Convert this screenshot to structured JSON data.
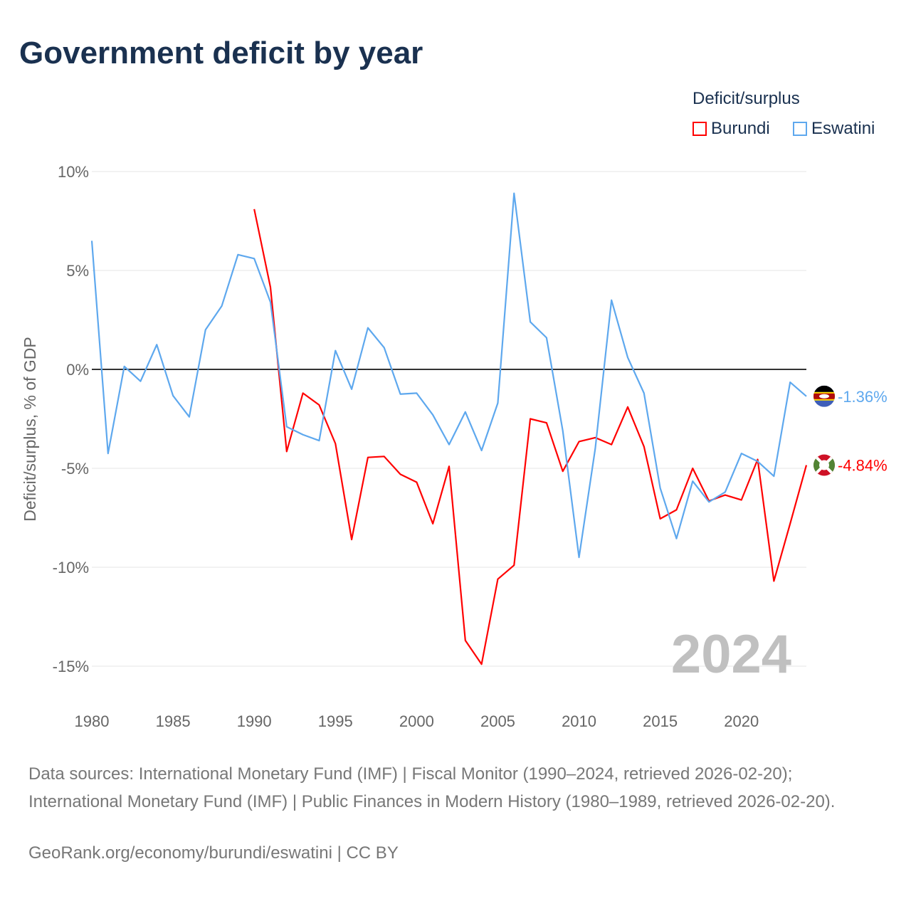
{
  "title": "Government deficit by year",
  "legend": {
    "title": "Deficit/surplus",
    "items": [
      "Burundi",
      "Eswatini"
    ]
  },
  "sources": "Data sources: International Monetary Fund (IMF) | Fiscal Monitor (1990–2024, retrieved 2026-02-20); International Monetary Fund (IMF) | Public Finances in Modern History (1980–1989, retrieved 2026-02-20).",
  "credit": "GeoRank.org/economy/burundi/eswatini | CC BY",
  "chart_data": {
    "type": "line",
    "title": "Government deficit by year",
    "ylabel": "Deficit/surplus, % of GDP",
    "xlabel": "",
    "xlim": [
      1980,
      2024
    ],
    "ylim": [
      -15,
      10
    ],
    "x_ticks": [
      1980,
      1985,
      1990,
      1995,
      2000,
      2005,
      2010,
      2015,
      2020
    ],
    "y_ticks": [
      10,
      5,
      0,
      -5,
      -10,
      -15
    ],
    "y_tick_labels": [
      "10%",
      "5%",
      "0%",
      "-5%",
      "-10%",
      "-15%"
    ],
    "year_watermark": "2024",
    "series": [
      {
        "name": "Burundi",
        "color": "#ff0000",
        "end_label": "-4.84%",
        "x": [
          1990,
          1991,
          1992,
          1993,
          1994,
          1995,
          1996,
          1997,
          1998,
          1999,
          2000,
          2001,
          2002,
          2003,
          2004,
          2005,
          2006,
          2007,
          2008,
          2009,
          2010,
          2011,
          2012,
          2013,
          2014,
          2015,
          2016,
          2017,
          2018,
          2019,
          2020,
          2021,
          2022,
          2023,
          2024
        ],
        "values": [
          8.1,
          4.15,
          -4.15,
          -1.2,
          -1.8,
          -3.75,
          -8.6,
          -4.45,
          -4.4,
          -5.3,
          -5.7,
          -7.8,
          -4.9,
          -13.7,
          -14.9,
          -10.6,
          -9.9,
          -2.5,
          -2.7,
          -5.15,
          -3.65,
          -3.45,
          -3.8,
          -1.9,
          -3.9,
          -7.55,
          -7.1,
          -5.0,
          -6.65,
          -6.35,
          -6.6,
          -4.55,
          -10.7,
          -7.8,
          -4.84
        ]
      },
      {
        "name": "Eswatini",
        "color": "#5ea8ee",
        "end_label": "-1.36%",
        "x": [
          1980,
          1981,
          1982,
          1983,
          1984,
          1985,
          1986,
          1987,
          1988,
          1989,
          1990,
          1991,
          1992,
          1993,
          1994,
          1995,
          1996,
          1997,
          1998,
          1999,
          2000,
          2001,
          2002,
          2003,
          2004,
          2005,
          2006,
          2007,
          2008,
          2009,
          2010,
          2011,
          2012,
          2013,
          2014,
          2015,
          2016,
          2017,
          2018,
          2019,
          2020,
          2021,
          2022,
          2023,
          2024
        ],
        "values": [
          6.5,
          -4.25,
          0.15,
          -0.6,
          1.25,
          -1.33,
          -2.4,
          2.0,
          3.2,
          5.8,
          5.6,
          3.4,
          -2.9,
          -3.3,
          -3.6,
          0.95,
          -1.0,
          2.1,
          1.1,
          -1.25,
          -1.2,
          -2.3,
          -3.8,
          -2.15,
          -4.1,
          -1.7,
          8.9,
          2.4,
          1.6,
          -3.1,
          -9.5,
          -4.0,
          3.5,
          0.6,
          -1.2,
          -6.0,
          -8.55,
          -5.65,
          -6.7,
          -6.2,
          -4.25,
          -4.65,
          -5.4,
          -0.65,
          -1.36
        ]
      }
    ]
  }
}
